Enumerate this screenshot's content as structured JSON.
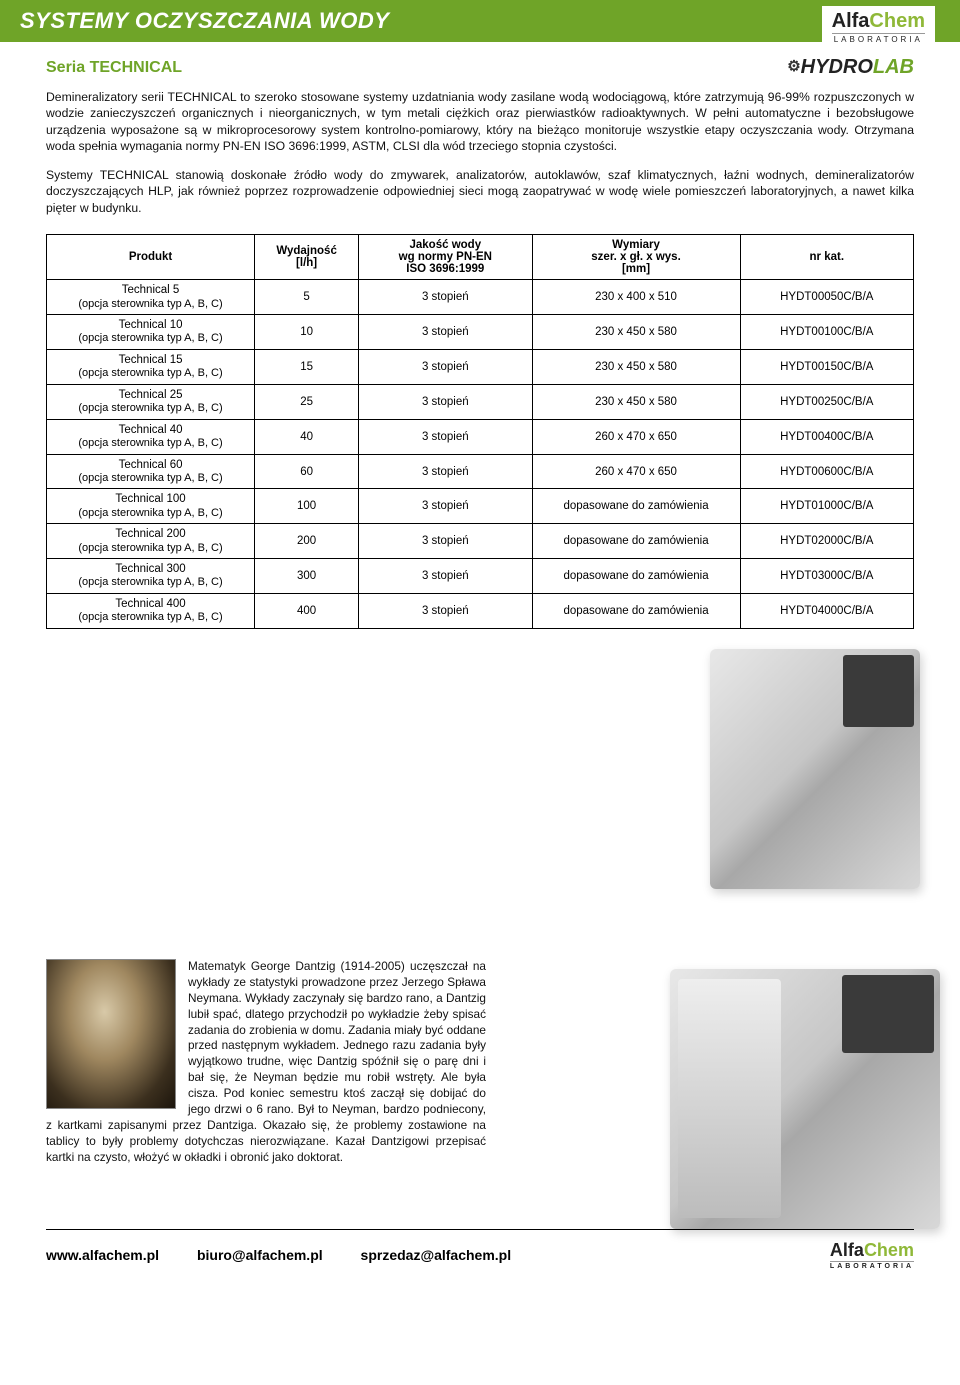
{
  "header": {
    "title": "SYSTEMY OCZYSZCZANIA WODY",
    "brand_main": "Alfa",
    "brand_accent": "Chem",
    "brand_sub": "LABORATORIA"
  },
  "subheader": {
    "series": "Seria TECHNICAL",
    "hydrolab_gear": "⚙",
    "hydrolab_prefix": "HYDRO",
    "hydrolab_accent": "LAB"
  },
  "paragraphs": {
    "p1": "Demineralizatory serii TECHNICAL to szeroko stosowane systemy uzdatniania wody zasilane wodą wodociągową, które zatrzymują 96-99% rozpuszczonych w wodzie zanieczyszczeń organicznych i nieorganicznych, w tym metali ciężkich oraz pierwiastków radioaktywnych. W pełni automatyczne i bezobsługowe urządzenia wyposażone są w mikroprocesorowy system kontrolno-pomiarowy, który na bieżąco monitoruje wszystkie etapy oczyszczania wody. Otrzymana woda spełnia wymagania normy PN-EN ISO 3696:1999, ASTM, CLSI dla wód trzeciego stopnia czystości.",
    "p2": "Systemy TECHNICAL stanowią doskonałe źródło wody do zmywarek, analizatorów, autoklawów, szaf klimatycznych, łaźni wodnych, demineralizatorów doczyszczających HLP, jak również poprzez rozprowadzenie odpowiedniej sieci mogą zaopatrywać w wodę wiele pomieszczeń laboratoryjnych, a nawet kilka pięter w budynku."
  },
  "table": {
    "headers": {
      "produkt": "Produkt",
      "wydajnosc": "Wydajność\n[l/h]",
      "jakosc": "Jakość wody\nwg normy PN-EN\nISO 3696:1999",
      "wymiary": "Wymiary\nszer. x gł. x wys.\n[mm]",
      "nrkat": "nr kat."
    },
    "option_text": "(opcja sterownika typ A, B, C)",
    "rows": [
      {
        "name": "Technical 5",
        "wyd": "5",
        "jak": "3 stopień",
        "wym": "230 x 400 x 510",
        "kat": "HYDT00050C/B/A"
      },
      {
        "name": "Technical 10",
        "wyd": "10",
        "jak": "3 stopień",
        "wym": "230 x 450 x 580",
        "kat": "HYDT00100C/B/A"
      },
      {
        "name": "Technical 15",
        "wyd": "15",
        "jak": "3 stopień",
        "wym": "230 x 450 x 580",
        "kat": "HYDT00150C/B/A"
      },
      {
        "name": "Technical 25",
        "wyd": "25",
        "jak": "3 stopień",
        "wym": "230 x 450 x 580",
        "kat": "HYDT00250C/B/A"
      },
      {
        "name": "Technical 40",
        "wyd": "40",
        "jak": "3 stopień",
        "wym": "260 x 470 x 650",
        "kat": "HYDT00400C/B/A"
      },
      {
        "name": "Technical 60",
        "wyd": "60",
        "jak": "3 stopień",
        "wym": "260 x 470 x 650",
        "kat": "HYDT00600C/B/A"
      },
      {
        "name": "Technical 100",
        "wyd": "100",
        "jak": "3 stopień",
        "wym": "dopasowane do zamówienia",
        "kat": "HYDT01000C/B/A"
      },
      {
        "name": "Technical 200",
        "wyd": "200",
        "jak": "3 stopień",
        "wym": "dopasowane do zamówienia",
        "kat": "HYDT02000C/B/A"
      },
      {
        "name": "Technical 300",
        "wyd": "300",
        "jak": "3 stopień",
        "wym": "dopasowane do zamówienia",
        "kat": "HYDT03000C/B/A"
      },
      {
        "name": "Technical 400",
        "wyd": "400",
        "jak": "3 stopień",
        "wym": "dopasowane do zamówienia",
        "kat": "HYDT04000C/B/A"
      }
    ]
  },
  "anecdote": {
    "text": "Matematyk George Dantzig (1914-2005) uczęszczał na wykłady ze statystyki prowadzone przez Jerzego Spława Neymana. Wykłady zaczynały się bardzo rano, a Dantzig lubił spać, dlatego przychodził po wykładzie żeby spisać zadania do zrobienia w domu. Zadania miały być oddane przed następnym wykładem. Jednego razu zadania były wyjątkowo trudne, więc Dantzig spóźnił się o parę dni i bał się, że Neyman będzie mu robił wstręty. Ale była cisza. Pod koniec semestru ktoś zaczął się dobijać do jego drzwi o 6 rano. Był to Neyman, bardzo podniecony, z kartkami zapisanymi przez Dantziga. Okazało się, że problemy zostawione na tablicy to były problemy dotychczas nierozwiązane. Kazał Dantzigowi przepisać kartki na czysto, włożyć w okładki i obronić jako doktorat."
  },
  "footer": {
    "website": "www.alfachem.pl",
    "email1": "biuro@alfachem.pl",
    "email2": "sprzedaz@alfachem.pl"
  },
  "colors": {
    "accent_green": "#6fa428",
    "light_green": "#8fb838",
    "text": "#111111",
    "white": "#ffffff"
  }
}
